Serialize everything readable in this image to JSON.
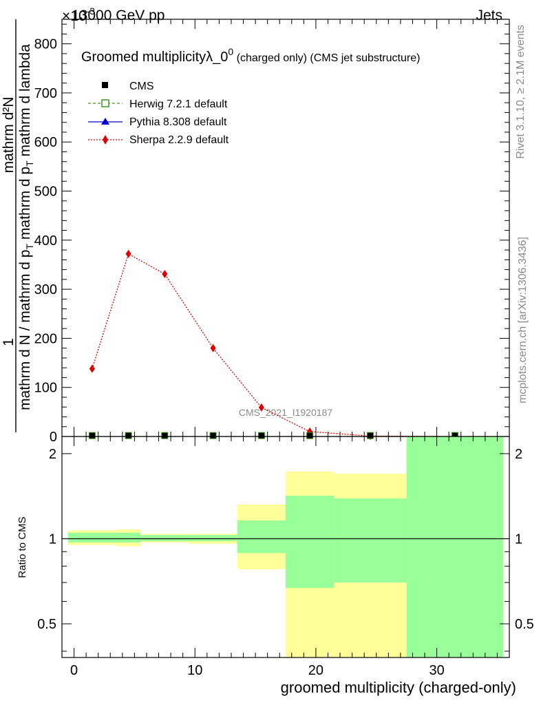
{
  "header": {
    "left": "13000 GeV pp",
    "right": "Jets",
    "exponent": "×10",
    "exponent_power": "-3"
  },
  "side_labels": {
    "rivet": "Rivet 3.1.10, ≥ 2.1M events",
    "mcplots": "mcplots.cern.ch [arXiv:1306.3436]"
  },
  "chart_data": [
    {
      "type": "line",
      "title_main": "Groomed multiplicityλ_0",
      "title_sup": "0",
      "title_suffix": "(charged only) (CMS jet substructure)",
      "ylabel_top": "1",
      "ylabel_num": "mathrm d²N",
      "ylabel_den": "mathrm d N / mathrm d p",
      "ylabel_den_mid": "T",
      "ylabel_den_end": "mathrm d p",
      "ylabel_den_tail": "mathrm d lambda",
      "watermark": "CMS_2021_I1920187",
      "xlim": [
        -1,
        36
      ],
      "ylim": [
        0,
        850
      ],
      "yticks": [
        0,
        100,
        200,
        300,
        400,
        500,
        600,
        700,
        800
      ],
      "ytick_labels": [
        "0",
        "100",
        "200",
        "300",
        "400",
        "500",
        "600",
        "700",
        "800"
      ],
      "legend": [
        {
          "name": "CMS",
          "color": "#000000",
          "marker": "square"
        },
        {
          "name": "Herwig 7.2.1 default",
          "color": "#3a9a1a",
          "marker": "open-square"
        },
        {
          "name": "Pythia 8.308 default",
          "color": "#0000cc",
          "marker": "triangle"
        },
        {
          "name": "Sherpa 2.2.9 default",
          "color": "#dd0000",
          "marker": "diamond"
        }
      ],
      "series": [
        {
          "name": "CMS",
          "x": [
            1.5,
            4.5,
            7.5,
            11.5,
            15.5,
            19.5,
            24.5,
            31.5
          ],
          "y": [
            0.5,
            0.5,
            0.5,
            0.5,
            0.5,
            0.5,
            0.5,
            0.5
          ]
        },
        {
          "name": "Sherpa 2.2.9 default",
          "x": [
            1.5,
            4.5,
            7.5,
            11.5,
            15.5,
            19.5,
            24.5,
            31.5
          ],
          "y": [
            138,
            372,
            331,
            180,
            59,
            10,
            1,
            0
          ]
        }
      ]
    },
    {
      "type": "area",
      "ylabel": "Ratio to CMS",
      "xlabel": "groomed multiplicity (charged-only)",
      "xlim": [
        -1,
        36
      ],
      "ylim": [
        0.38,
        2.3
      ],
      "log_y": true,
      "xticks": [
        0,
        10,
        20,
        30
      ],
      "xtick_labels": [
        "0",
        "10",
        "20",
        "30"
      ],
      "yticks": [
        0.5,
        1,
        2
      ],
      "ytick_labels": [
        "0.5",
        "1",
        "2"
      ],
      "bins": [
        {
          "x0": -0.5,
          "x1": 3.5,
          "yellow": [
            0.95,
            1.07
          ],
          "green": [
            0.97,
            1.05
          ]
        },
        {
          "x0": 3.5,
          "x1": 5.5,
          "yellow": [
            0.94,
            1.08
          ],
          "green": [
            0.97,
            1.05
          ]
        },
        {
          "x0": 5.5,
          "x1": 9.5,
          "yellow": [
            0.97,
            1.04
          ],
          "green": [
            0.98,
            1.03
          ]
        },
        {
          "x0": 9.5,
          "x1": 13.5,
          "yellow": [
            0.96,
            1.04
          ],
          "green": [
            0.98,
            1.03
          ]
        },
        {
          "x0": 13.5,
          "x1": 17.5,
          "yellow": [
            0.78,
            1.32
          ],
          "green": [
            0.89,
            1.16
          ]
        },
        {
          "x0": 17.5,
          "x1": 21.5,
          "yellow": [
            0.38,
            1.73
          ],
          "green": [
            0.67,
            1.42
          ]
        },
        {
          "x0": 21.5,
          "x1": 27.5,
          "yellow": [
            0.38,
            1.7
          ],
          "green": [
            0.7,
            1.39
          ]
        },
        {
          "x0": 27.5,
          "x1": 35.5,
          "yellow": [
            0.38,
            2.3
          ],
          "green": [
            0.38,
            2.3
          ]
        }
      ]
    }
  ]
}
